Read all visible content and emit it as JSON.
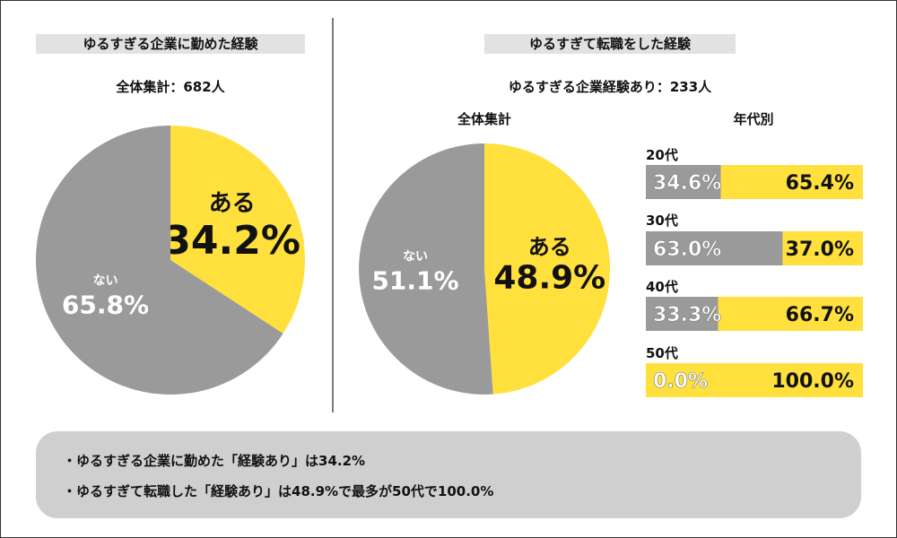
{
  "left": {
    "heading": "ゆるすぎる企業に勤めた経験",
    "subtitle": "全体集計：682人"
  },
  "right": {
    "heading": "ゆるすぎて転職をした経験",
    "subtitle": "ゆるすぎる企業経験あり：233人",
    "overall_label": "全体集計",
    "by_age_label": "年代別"
  },
  "summary": {
    "line1": "・ゆるすぎる企業に勤めた「経験あり」は34.2%",
    "line2": "・ゆるすぎて転職した「経験あり」は48.9%で最多が50代で100.0%"
  },
  "colors": {
    "yes": "#ffe03c",
    "no": "#9a9a9a"
  },
  "chart_data": [
    {
      "type": "pie",
      "title": "ゆるすぎる企業に勤めた経験",
      "subtitle": "全体集計：682人",
      "slices": [
        {
          "label": "ある",
          "value": 34.2,
          "display": "34.2%",
          "color": "#ffe03c"
        },
        {
          "label": "ない",
          "value": 65.8,
          "display": "65.8%",
          "color": "#9a9a9a"
        }
      ]
    },
    {
      "type": "pie",
      "title": "全体集計",
      "slices": [
        {
          "label": "ある",
          "value": 48.9,
          "display": "48.9%",
          "color": "#ffe03c"
        },
        {
          "label": "ない",
          "value": 51.1,
          "display": "51.1%",
          "color": "#9a9a9a"
        }
      ]
    },
    {
      "type": "bar",
      "orientation": "horizontal-stacked",
      "title": "年代別",
      "categories": [
        "20代",
        "30代",
        "40代",
        "50代"
      ],
      "series": [
        {
          "color": "#9a9a9a",
          "values": [
            34.6,
            63.0,
            33.3,
            0.0
          ],
          "labels": [
            "34.6%",
            "63.0%",
            "33.3%",
            "0.0%"
          ]
        },
        {
          "color": "#ffe03c",
          "values": [
            65.4,
            37.0,
            66.7,
            100.0
          ],
          "labels": [
            "65.4%",
            "37.0%",
            "66.7%",
            "100.0%"
          ]
        }
      ]
    }
  ]
}
